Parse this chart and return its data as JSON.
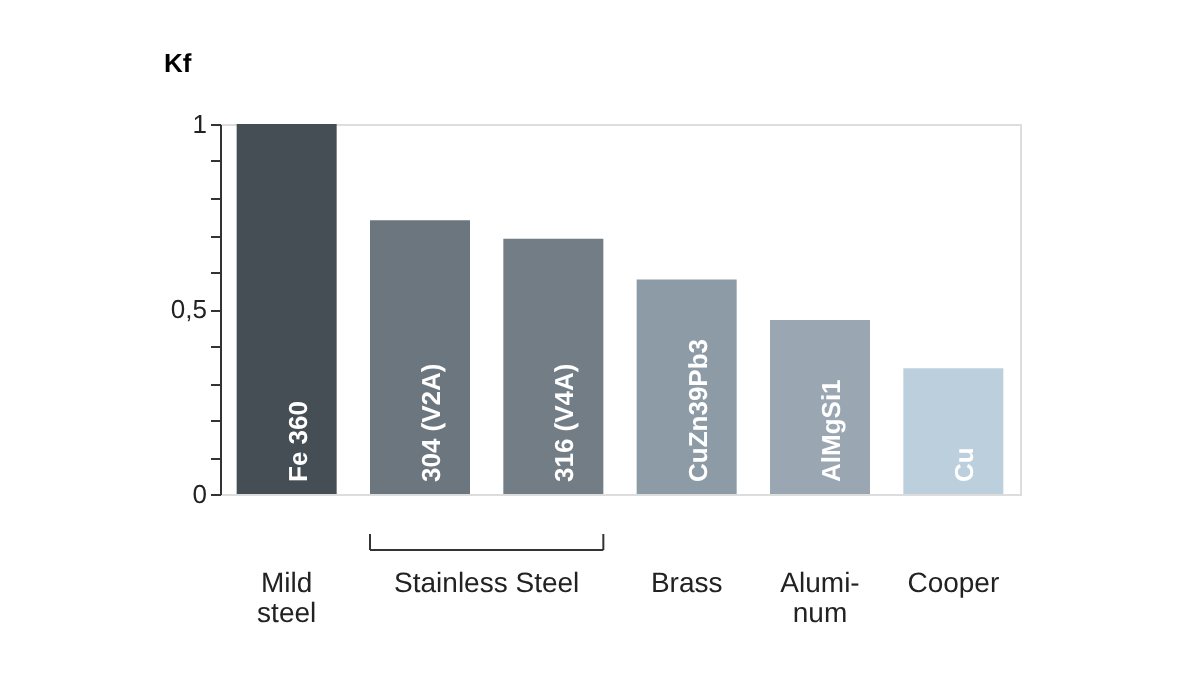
{
  "chart_data": {
    "type": "bar",
    "ylabel": "Kf",
    "categories": [
      "Fe 360",
      "304 (V2A)",
      "316 (V4A)",
      "CuZn39Pb3",
      "AlMgSi1",
      "Cu"
    ],
    "values": [
      1.0,
      0.74,
      0.69,
      0.58,
      0.47,
      0.34
    ],
    "colors": [
      "#454d55",
      "#6c767e",
      "#727d86",
      "#8d9ba6",
      "#9aa7b2",
      "#bccfdc"
    ],
    "ylim": [
      0,
      1
    ],
    "yticks": [
      0,
      {
        "value": 0.1,
        "label": null
      },
      {
        "value": 0.2,
        "label": null
      },
      {
        "value": 0.3,
        "label": null
      },
      {
        "value": 0.4,
        "label": null
      },
      {
        "value": 0.5,
        "label": "0,5"
      },
      {
        "value": 0.6,
        "label": null
      },
      {
        "value": 0.7,
        "label": null
      },
      {
        "value": 0.8,
        "label": null
      },
      {
        "value": 0.9,
        "label": null
      },
      1
    ],
    "tick_labels": "y",
    "grid": false,
    "annotations": [
      "Mild\nsteel",
      "Stainless Steel",
      "Brass",
      "Alumi-\nnum",
      "Cooper"
    ]
  }
}
